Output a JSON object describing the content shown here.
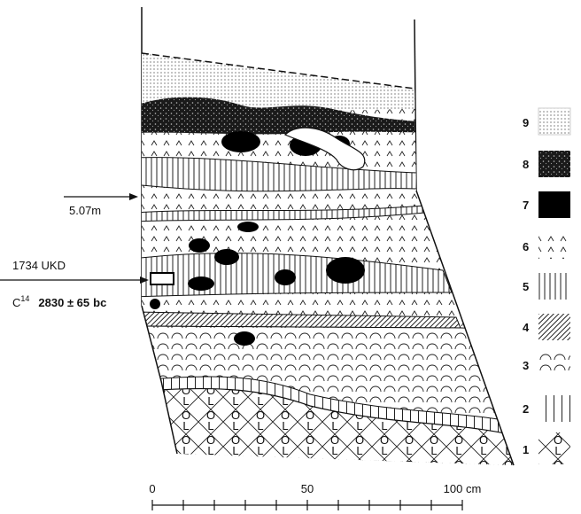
{
  "annotations": {
    "depth": "5.07m",
    "sample_id": "1734 UKD",
    "dating_method": "C",
    "dating_isotope": "14",
    "date": "2830 ± 65",
    "era": "bc"
  },
  "legend": {
    "items": [
      {
        "label": "9"
      },
      {
        "label": "8"
      },
      {
        "label": "7"
      },
      {
        "label": "6"
      },
      {
        "label": "5"
      },
      {
        "label": "4"
      },
      {
        "label": "3"
      },
      {
        "label": "2"
      },
      {
        "label": "1"
      }
    ]
  },
  "scale": {
    "labels": [
      "0",
      "50",
      "100 cm"
    ]
  }
}
